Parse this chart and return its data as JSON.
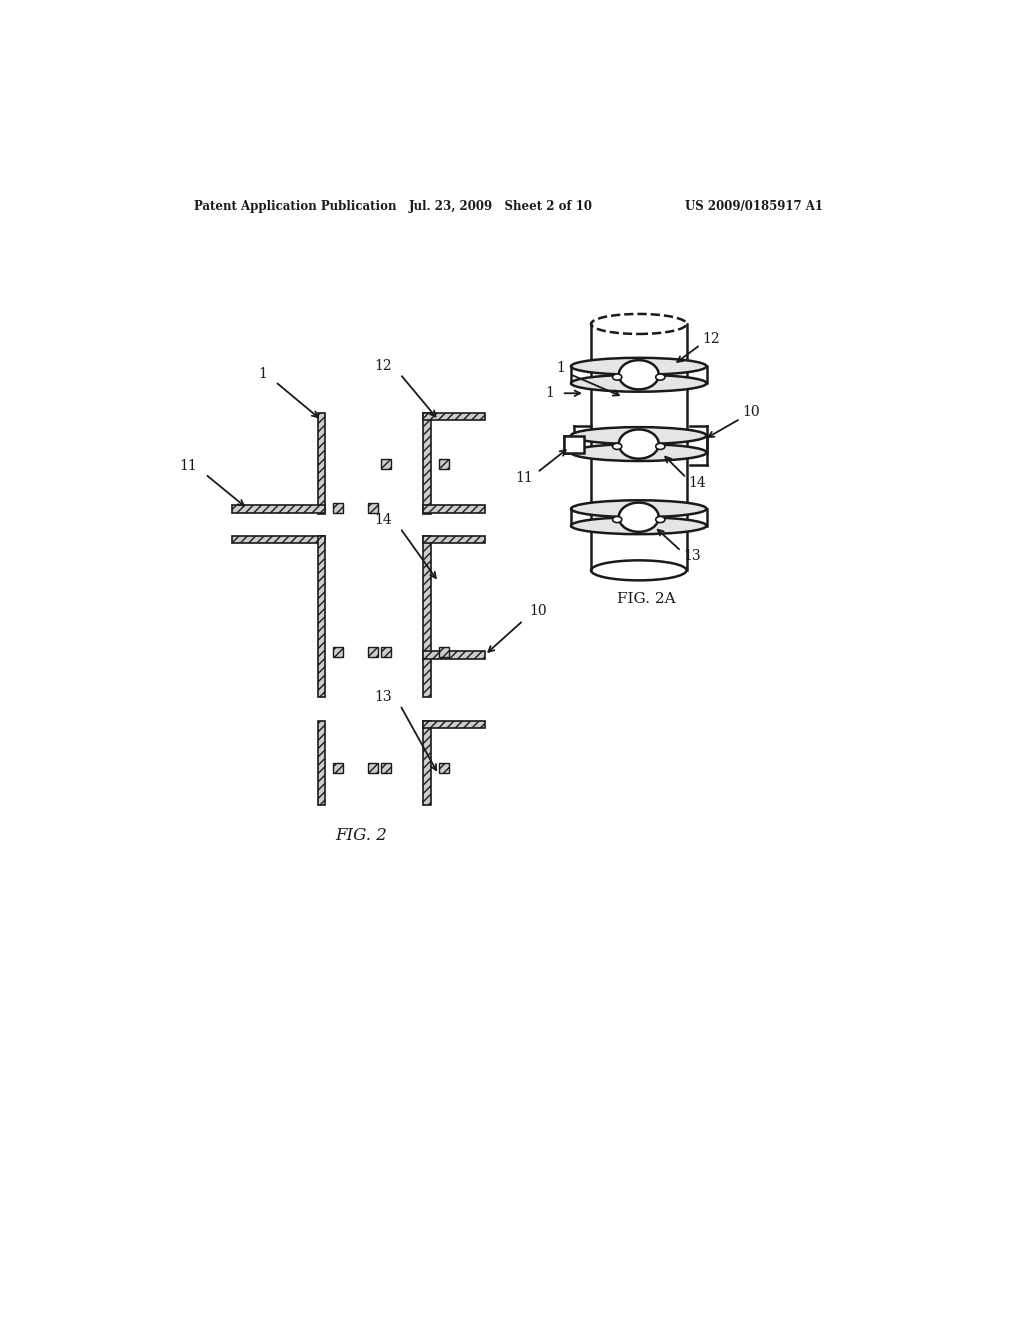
{
  "bg_color": "#ffffff",
  "header_left": "Patent Application Publication",
  "header_mid": "Jul. 23, 2009   Sheet 2 of 10",
  "header_right": "US 2009/0185917 A1",
  "fig2_label": "FIG. 2",
  "fig2a_label": "FIG. 2A",
  "line_color": "#1a1a1a",
  "hatch_face": "#cccccc"
}
